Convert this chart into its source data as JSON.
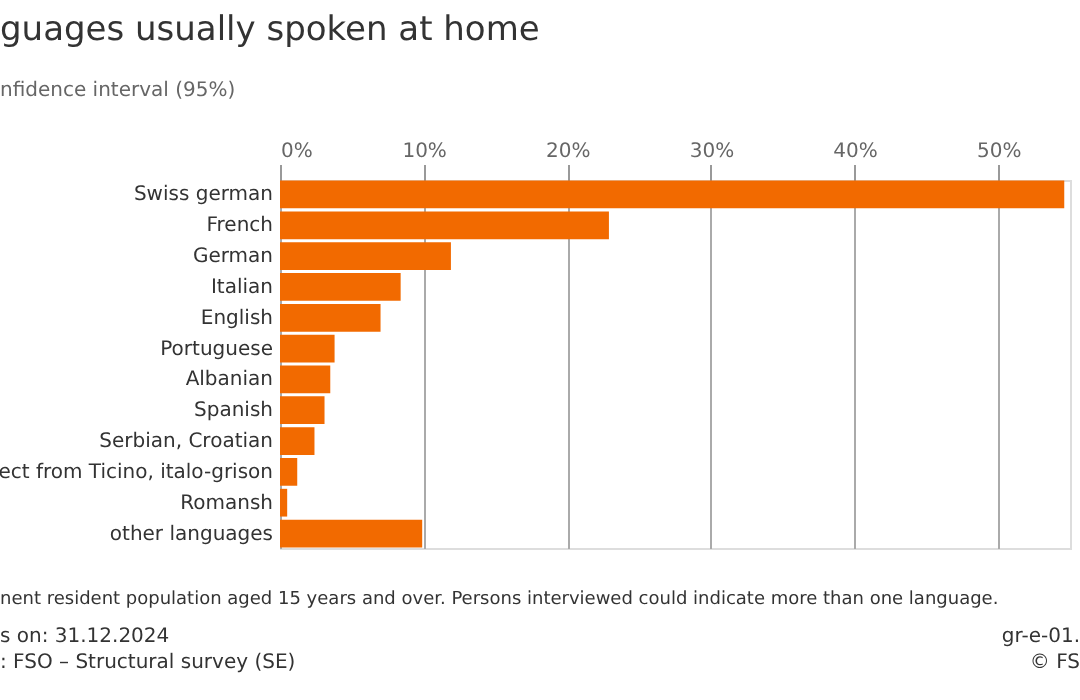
{
  "chart_data": {
    "type": "bar",
    "orientation": "horizontal",
    "title": "guages usually spoken at home",
    "subtitle": "nfidence interval (95%)",
    "categories": [
      "Swiss german",
      "French",
      "German",
      "Italian",
      "English",
      "Portuguese",
      "Albanian",
      "Spanish",
      "Serbian, Croatian",
      "ect from Ticino, italo-grison",
      "Romansh",
      "other languages"
    ],
    "values": [
      54.6,
      22.9,
      11.9,
      8.4,
      7.0,
      3.8,
      3.5,
      3.1,
      2.4,
      1.2,
      0.5,
      9.9
    ],
    "color": "#f26a00",
    "xlim": [
      0,
      55
    ],
    "xticks": [
      {
        "value": 0,
        "label": "0%"
      },
      {
        "value": 10,
        "label": "10%"
      },
      {
        "value": 20,
        "label": "20%"
      },
      {
        "value": 30,
        "label": "30%"
      },
      {
        "value": 40,
        "label": "40%"
      },
      {
        "value": 50,
        "label": "50%"
      }
    ],
    "grid": "x",
    "annotations": [
      "nent resident population aged 15 years and over. Persons interviewed could indicate more than one language.",
      "s on: 31.12.2024",
      ": FSO – Structural survey (SE)",
      "gr-e-01.",
      "© FS"
    ]
  }
}
